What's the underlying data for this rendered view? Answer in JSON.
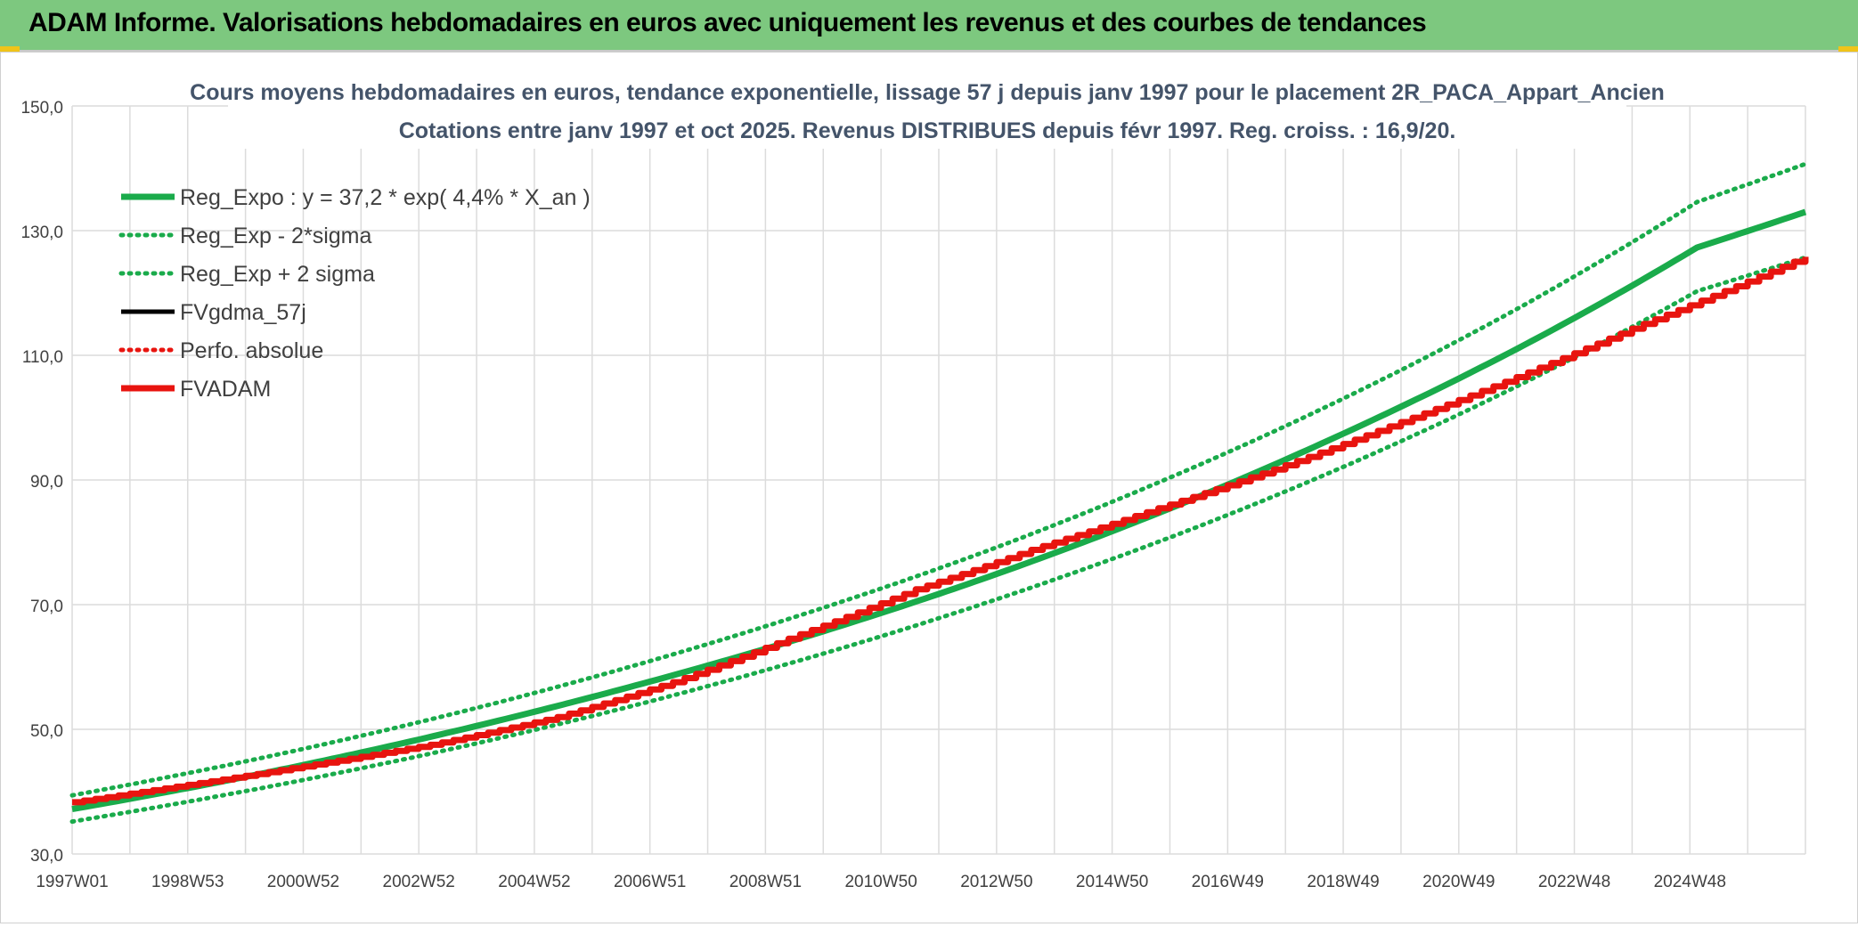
{
  "header": {
    "title": "ADAM Informe. Valorisations hebdomadaires en euros avec uniquement les revenus et des courbes de tendances"
  },
  "colors": {
    "banner": "#7dc87f",
    "green": "#1aab4b",
    "red": "#e8140f",
    "black": "#000000",
    "grid": "#dcdcdc",
    "title_text": "#44546a"
  },
  "chart_data": {
    "type": "line",
    "title": "Cours moyens hebdomadaires en euros, tendance exponentielle, lissage 57 j depuis janv 1997 pour le placement 2R_PACA_Appart_Ancien",
    "subtitle": "Cotations entre janv 1997 et oct 2025. Revenus DISTRIBUES depuis févr 1997. Reg. croiss. : 16,9/20.",
    "xlabel": "",
    "ylabel": "",
    "ylim": [
      30,
      150
    ],
    "y_ticks": [
      "150,0",
      "130,0",
      "110,0",
      "90,0",
      "70,0",
      "50,0",
      "30,0"
    ],
    "x_tick_labels": [
      "1997W01",
      "1998W53",
      "2000W52",
      "2002W52",
      "2004W52",
      "2006W51",
      "2008W51",
      "2010W50",
      "2012W50",
      "2014W50",
      "2016W49",
      "2018W49",
      "2020W49",
      "2022W48",
      "2024W48"
    ],
    "xlim": [
      1997.0,
      2025.8
    ],
    "grid": true,
    "legend_position": "top-left",
    "series": [
      {
        "name": "Reg_Expo : y = 37,2 * exp( 4,4% *  X_an )",
        "style": "solid-thick",
        "color": "#1aab4b",
        "x": [
          1997.0,
          2000.0,
          2003.0,
          2006.0,
          2009.0,
          2012.0,
          2015.0,
          2018.0,
          2021.0,
          2024.0,
          2025.8
        ],
        "y": [
          37.2,
          42.6,
          48.9,
          56.1,
          64.3,
          73.7,
          84.5,
          96.9,
          111.0,
          127.3,
          133.0
        ]
      },
      {
        "name": "Reg_Exp - 2*sigma",
        "style": "dotted",
        "color": "#1aab4b",
        "x": [
          1997.0,
          2000.0,
          2003.0,
          2006.0,
          2009.0,
          2012.0,
          2015.0,
          2018.0,
          2021.0,
          2024.0,
          2025.8
        ],
        "y": [
          35.2,
          40.3,
          46.2,
          53.0,
          60.8,
          69.7,
          79.9,
          91.6,
          105.0,
          120.3,
          125.7
        ]
      },
      {
        "name": "Reg_Exp + 2 sigma",
        "style": "dotted",
        "color": "#1aab4b",
        "x": [
          1997.0,
          2000.0,
          2003.0,
          2006.0,
          2009.0,
          2012.0,
          2015.0,
          2018.0,
          2021.0,
          2024.0,
          2025.8
        ],
        "y": [
          39.4,
          45.1,
          51.7,
          59.3,
          68.0,
          77.9,
          89.4,
          102.5,
          117.4,
          134.6,
          140.7
        ]
      },
      {
        "name": "FVgdma_57j",
        "style": "solid",
        "color": "#000000",
        "x": [],
        "y": []
      },
      {
        "name": "Perfo. absolue",
        "style": "dotted",
        "color": "#e8140f",
        "x": [],
        "y": []
      },
      {
        "name": "FVADAM",
        "style": "solid-thick",
        "color": "#e8140f",
        "x": [
          1997.0,
          1999.0,
          2001.0,
          2003.0,
          2005.0,
          2007.0,
          2009.0,
          2011.0,
          2013.0,
          2015.0,
          2017.0,
          2019.0,
          2021.0,
          2023.0,
          2025.0,
          2025.8
        ],
        "y": [
          38.3,
          41.2,
          44.3,
          47.6,
          51.8,
          57.6,
          64.9,
          72.4,
          79.0,
          85.3,
          91.8,
          99.0,
          106.5,
          114.6,
          122.5,
          125.8
        ]
      }
    ]
  }
}
